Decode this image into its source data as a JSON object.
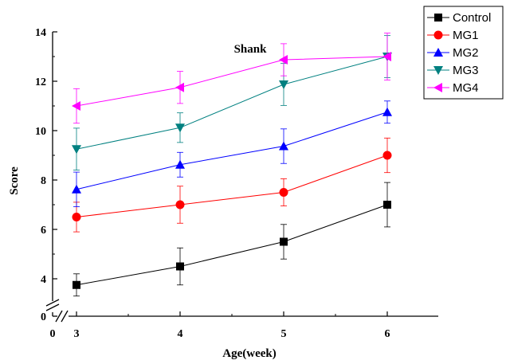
{
  "chart_data": {
    "type": "line",
    "title": "Shank",
    "xlabel": "Age(week)",
    "ylabel": "Score",
    "x": [
      3,
      4,
      5,
      6
    ],
    "x_tick_labels": [
      "0",
      "3",
      "4",
      "5",
      "6"
    ],
    "y_tick_labels": [
      "0",
      "4",
      "6",
      "8",
      "10",
      "12",
      "14"
    ],
    "ylim": [
      3,
      14
    ],
    "y_axis_break": true,
    "x_axis_break": true,
    "legend_position": "top-right",
    "series": [
      {
        "name": "Control",
        "color": "#000000",
        "marker": "square",
        "values": [
          3.75,
          4.5,
          5.5,
          7.0
        ],
        "errors": [
          0.45,
          0.75,
          0.7,
          0.9
        ]
      },
      {
        "name": "MG1",
        "color": "#ff0000",
        "marker": "circle",
        "values": [
          6.5,
          7.0,
          7.5,
          9.0
        ],
        "errors": [
          0.6,
          0.75,
          0.55,
          0.7
        ]
      },
      {
        "name": "MG2",
        "color": "#0000ff",
        "marker": "triangle-up",
        "values": [
          7.62,
          8.62,
          9.37,
          10.75
        ],
        "errors": [
          0.7,
          0.5,
          0.7,
          0.45
        ]
      },
      {
        "name": "MG3",
        "color": "#008080",
        "marker": "triangle-down",
        "values": [
          9.25,
          10.12,
          11.87,
          13.0
        ],
        "errors": [
          0.85,
          0.6,
          0.85,
          0.85
        ]
      },
      {
        "name": "MG4",
        "color": "#ff00ff",
        "marker": "triangle-left",
        "values": [
          11.0,
          11.75,
          12.87,
          13.0
        ],
        "errors": [
          0.7,
          0.65,
          0.65,
          0.95
        ]
      }
    ]
  }
}
